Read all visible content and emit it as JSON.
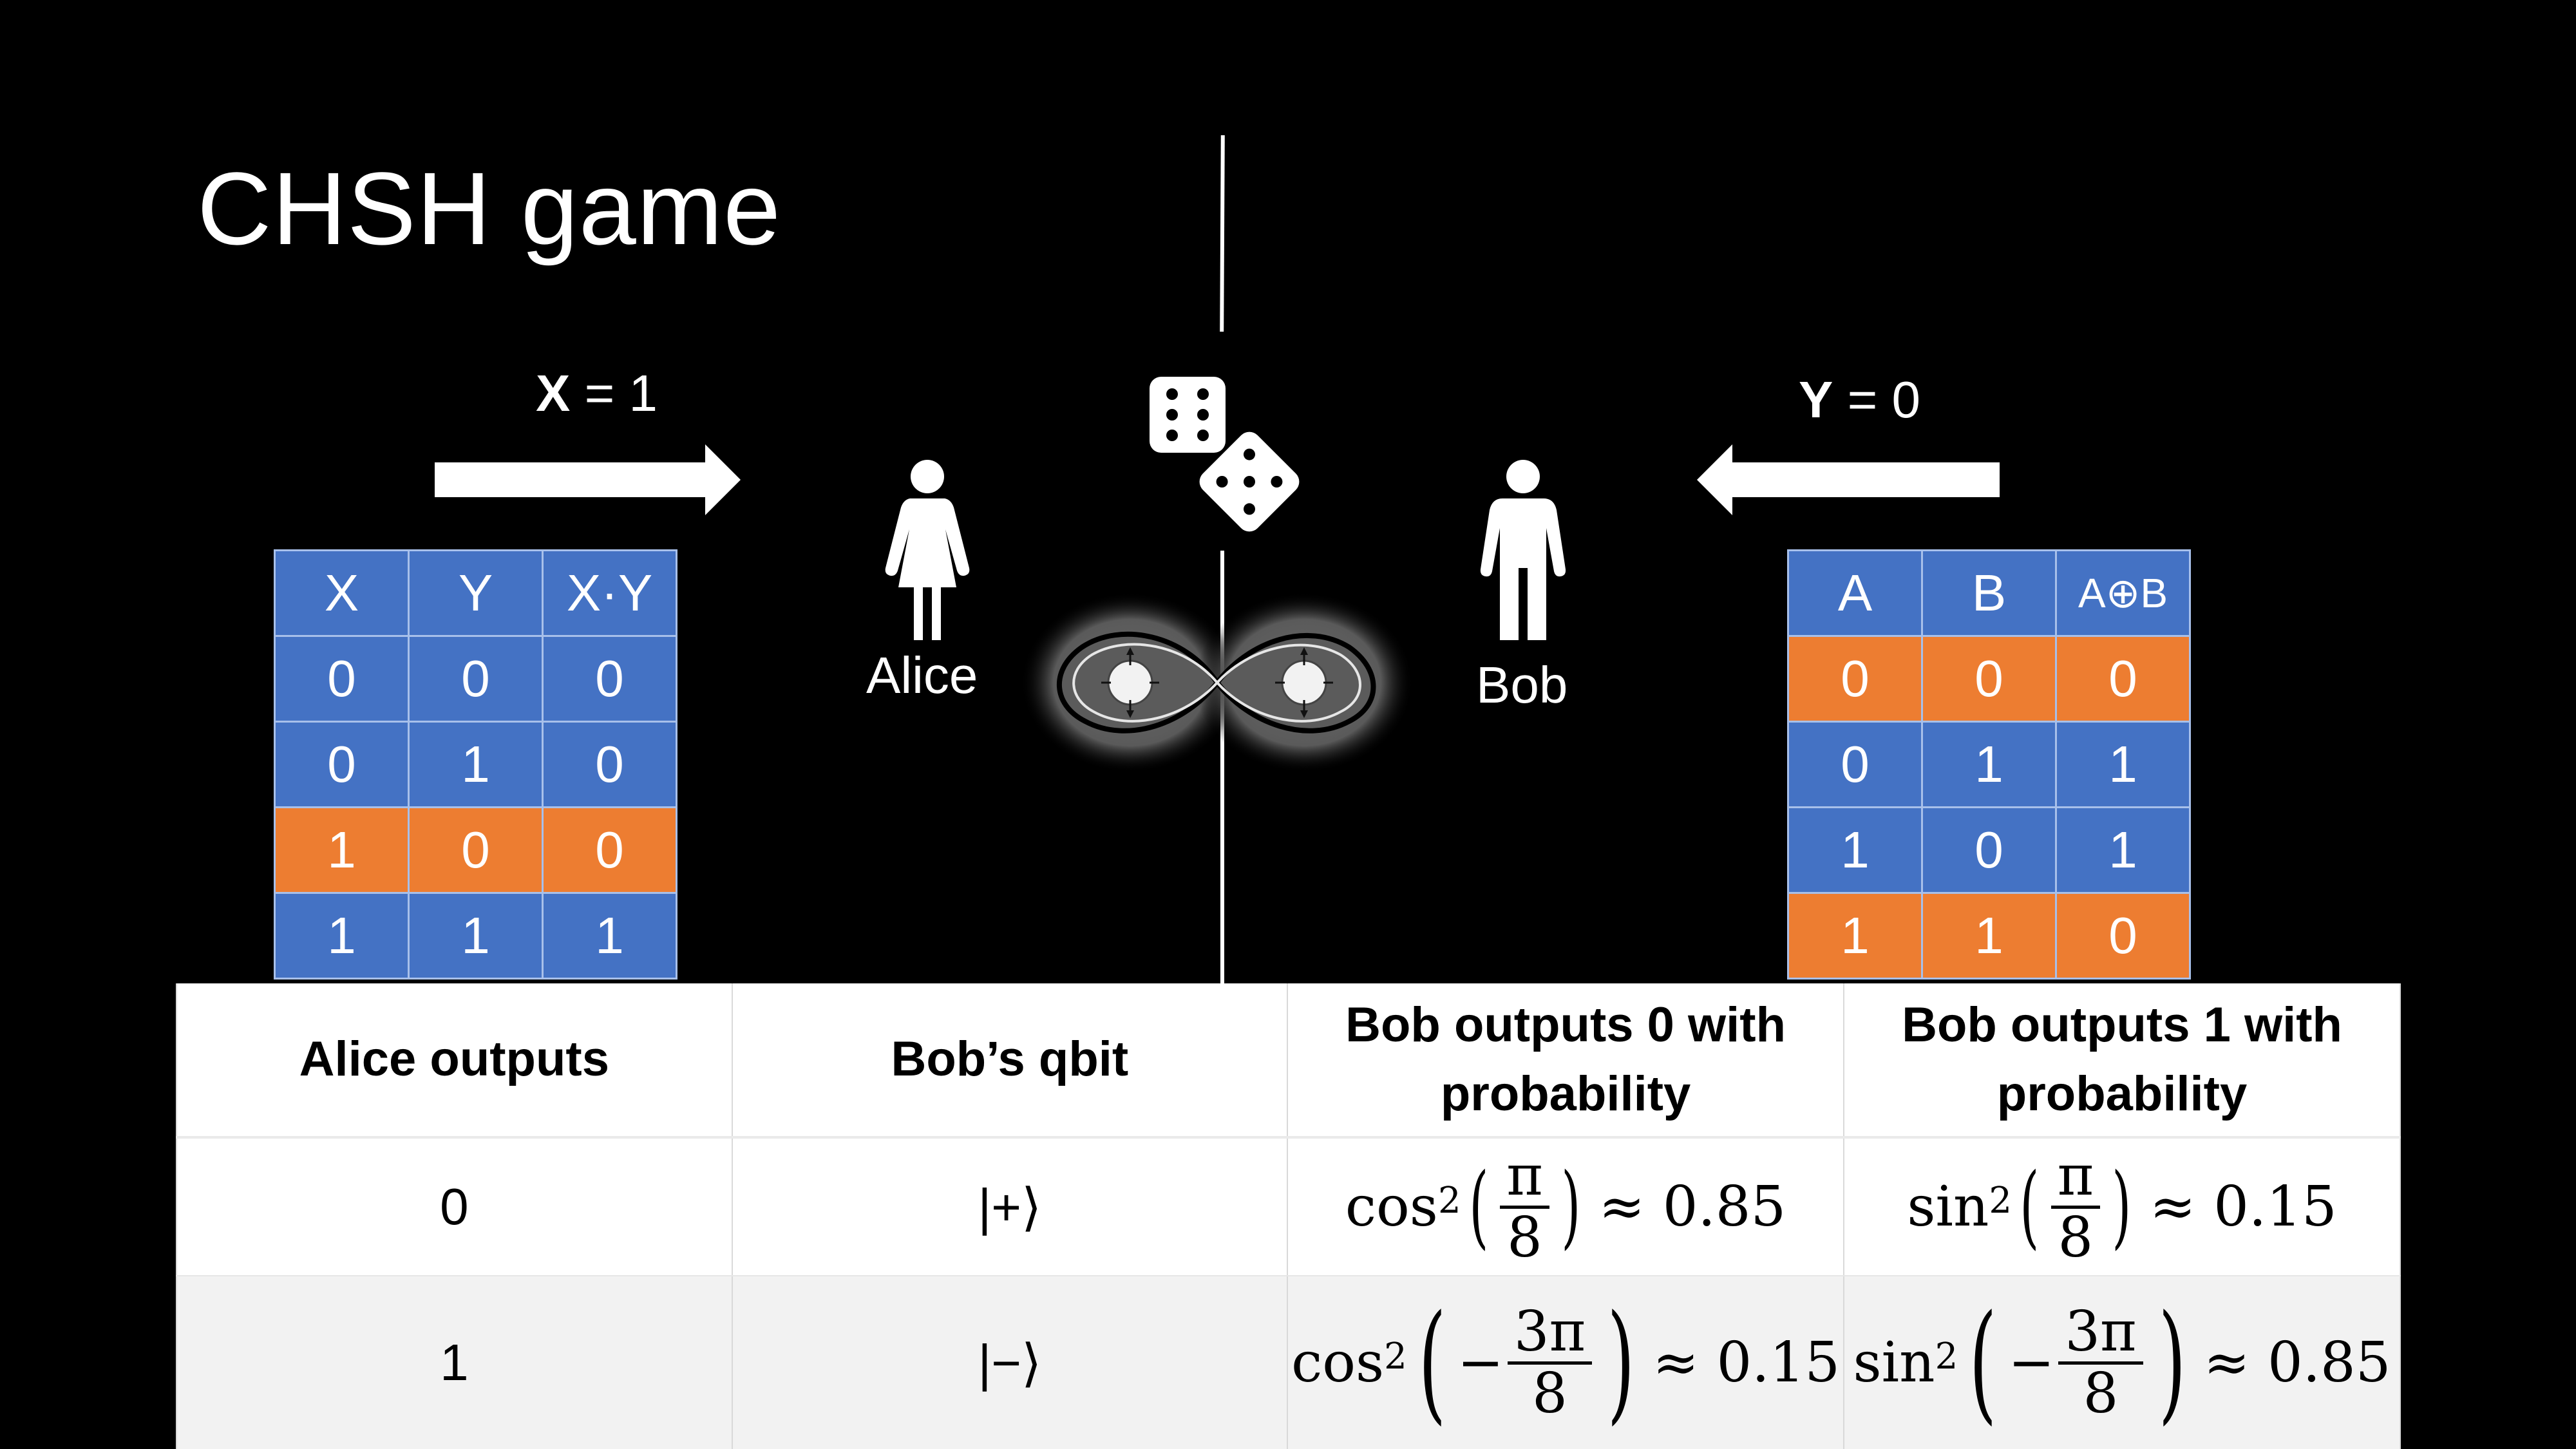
{
  "title": "CHSH game",
  "alice": {
    "name": "Alice",
    "question_var": "X",
    "question_rest": " = 1"
  },
  "bob": {
    "name": "Bob",
    "question_var": "Y",
    "question_rest": " = 0"
  },
  "xy_table": {
    "headers": [
      "X",
      "Y",
      "X·Y"
    ],
    "rows": [
      {
        "cells": [
          "0",
          "0",
          "0"
        ],
        "highlight": false
      },
      {
        "cells": [
          "0",
          "1",
          "0"
        ],
        "highlight": false
      },
      {
        "cells": [
          "1",
          "0",
          "0"
        ],
        "highlight": true
      },
      {
        "cells": [
          "1",
          "1",
          "1"
        ],
        "highlight": false
      }
    ]
  },
  "ab_table": {
    "headers": [
      "A",
      "B",
      "A⊕B"
    ],
    "rows": [
      {
        "cells": [
          "0",
          "0",
          "0"
        ],
        "highlight": true
      },
      {
        "cells": [
          "0",
          "1",
          "1"
        ],
        "highlight": false
      },
      {
        "cells": [
          "1",
          "0",
          "1"
        ],
        "highlight": false
      },
      {
        "cells": [
          "1",
          "1",
          "0"
        ],
        "highlight": true
      }
    ]
  },
  "prob_table": {
    "headers": [
      "Alice outputs",
      "Bob’s qbit",
      "Bob outputs 0 with probability",
      "Bob outputs 1 with probability"
    ],
    "rows": [
      {
        "alice": "0",
        "qbit": "|+⟩",
        "p0_fn": "cos",
        "p0_sign": "",
        "p0_num": "π",
        "p0_den": "8",
        "p0_val": "≈ 0.85",
        "p1_fn": "sin",
        "p1_sign": "",
        "p1_num": "π",
        "p1_den": "8",
        "p1_val": "≈ 0.15"
      },
      {
        "alice": "1",
        "qbit": "|−⟩",
        "p0_fn": "cos",
        "p0_sign": "−",
        "p0_num": "3π",
        "p0_den": "8",
        "p0_val": "≈ 0.15",
        "p1_fn": "sin",
        "p1_sign": "−",
        "p1_num": "3π",
        "p1_den": "8",
        "p1_val": "≈ 0.85"
      }
    ]
  },
  "colors": {
    "background": "#000000",
    "table_blue": "#4472c4",
    "table_orange": "#ed7d31",
    "foreground": "#ffffff"
  },
  "icons": [
    "dice-icon",
    "alice-person-icon",
    "bob-person-icon",
    "entangled-qubits-icon",
    "arrow-right-icon",
    "arrow-left-icon"
  ]
}
